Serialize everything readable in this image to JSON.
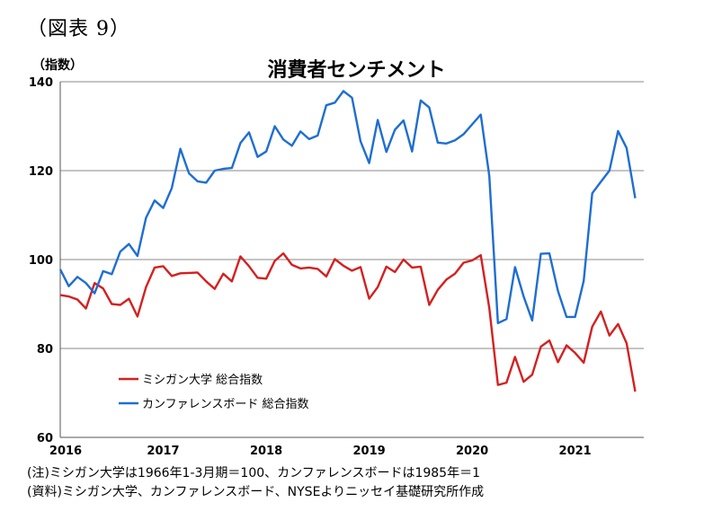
{
  "figure_label": "（図表 9）",
  "y_unit_label": "（指数）",
  "notes": [
    "(注)ミシガン大学は1966年1-3月期＝100、カンファレンスボードは1985年＝1",
    "(資料)ミシガン大学、カンファレンスボード、NYSEよりニッセイ基礎研究所作成"
  ],
  "chart_data": {
    "type": "line",
    "title": "消費者センチメント",
    "xlabel": "",
    "ylabel": "（指数）",
    "ylim": [
      60,
      140
    ],
    "yticks": [
      60,
      80,
      100,
      120,
      140
    ],
    "x_tick_labels": [
      "2016",
      "2017",
      "2018",
      "2019",
      "2020",
      "2021"
    ],
    "x_start": "2016-01",
    "grid": true,
    "legend_position": "bottom-left",
    "series": [
      {
        "name": "ミシガン大学 総合指数",
        "color": "#d42020",
        "values": [
          92.0,
          91.7,
          91.0,
          89.0,
          94.7,
          93.5,
          90.0,
          89.8,
          91.2,
          87.2,
          93.8,
          98.2,
          98.5,
          96.3,
          96.9,
          97.0,
          97.1,
          95.1,
          93.4,
          96.8,
          95.1,
          100.7,
          98.5,
          95.9,
          95.7,
          99.7,
          101.4,
          98.8,
          98.0,
          98.2,
          97.9,
          96.2,
          100.1,
          98.6,
          97.5,
          98.3,
          91.2,
          93.8,
          98.4,
          97.2,
          100.0,
          98.2,
          98.4,
          89.8,
          93.2,
          95.5,
          96.8,
          99.3,
          99.8,
          101.0,
          89.1,
          71.8,
          72.3,
          78.1,
          72.5,
          74.1,
          80.4,
          81.8,
          76.9,
          80.7,
          79.0,
          76.8,
          84.9,
          88.3,
          82.9,
          85.5,
          81.2,
          70.3
        ]
      },
      {
        "name": "カンファレンスボード 総合指数",
        "color": "#1e6ed2",
        "values": [
          97.8,
          94.0,
          96.1,
          94.7,
          92.4,
          97.4,
          96.7,
          101.8,
          103.5,
          100.8,
          109.4,
          113.3,
          111.6,
          116.1,
          124.9,
          119.4,
          117.6,
          117.3,
          120.0,
          120.4,
          120.6,
          126.2,
          128.6,
          123.1,
          124.3,
          130.0,
          127.0,
          125.6,
          128.8,
          127.1,
          127.9,
          134.7,
          135.3,
          137.9,
          136.4,
          126.6,
          121.7,
          131.4,
          124.2,
          129.2,
          131.3,
          124.3,
          135.8,
          134.2,
          126.3,
          126.1,
          126.8,
          128.2,
          130.4,
          132.6,
          118.8,
          85.7,
          86.6,
          98.3,
          91.7,
          86.3,
          101.3,
          101.4,
          92.9,
          87.1,
          87.1,
          95.2,
          114.9,
          117.5,
          120.0,
          128.9,
          125.1,
          113.8
        ]
      }
    ]
  }
}
